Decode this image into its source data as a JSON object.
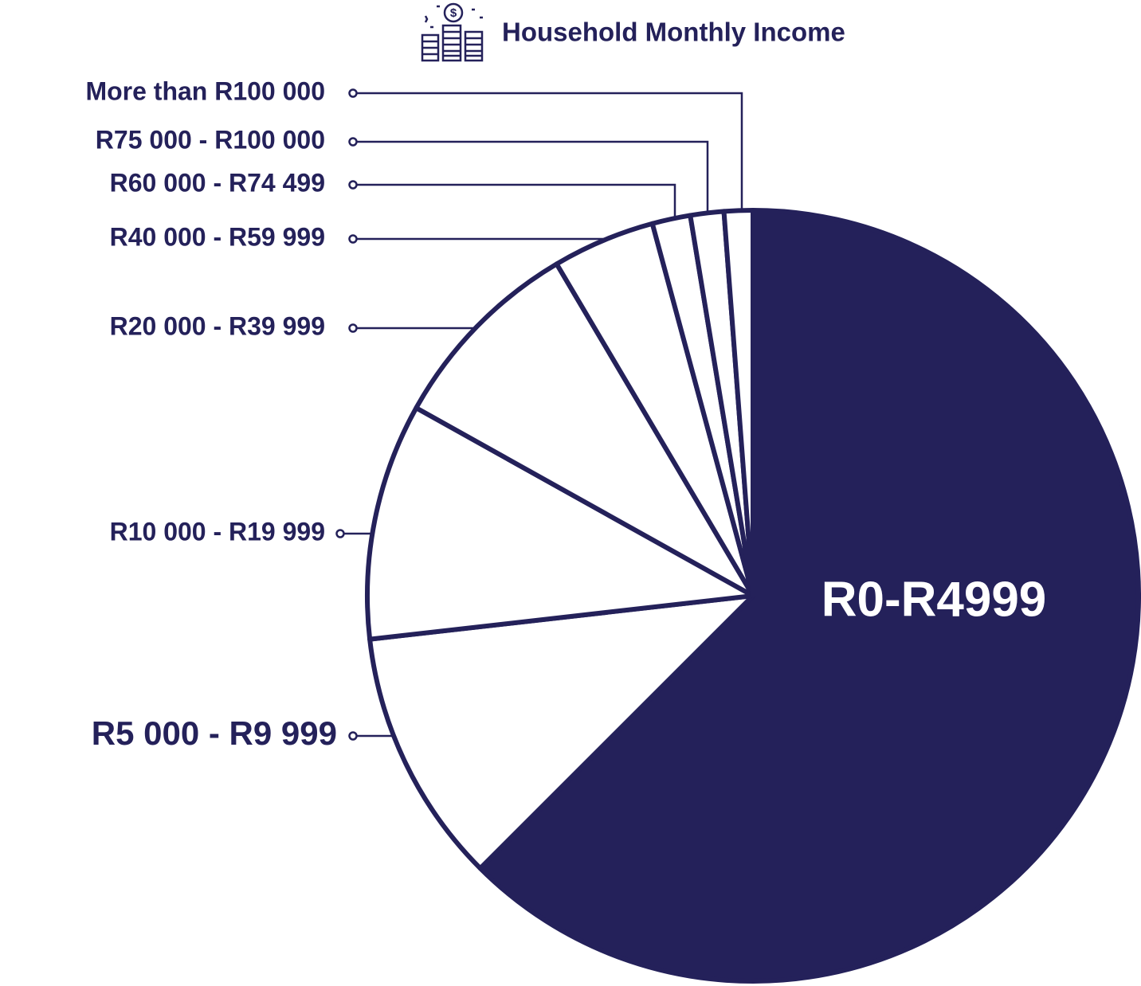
{
  "chart_data": {
    "type": "pie",
    "title": "Household Monthly Income",
    "categories": [
      "R0-R4999",
      "R5 000 - R9 999",
      "R10 000 - R19 999",
      "R20 000 - R39 999",
      "R40 000 - R59 999",
      "R60 000 - R74 499",
      "R75 000 - R100 000",
      "More than R100 000"
    ],
    "values": [
      62.5,
      10.7,
      9.9,
      8.4,
      4.3,
      1.6,
      1.4,
      1.2
    ],
    "colors": [
      "#24215a",
      "#ffffff",
      "#ffffff",
      "#ffffff",
      "#ffffff",
      "#ffffff",
      "#ffffff",
      "#ffffff"
    ]
  }
}
